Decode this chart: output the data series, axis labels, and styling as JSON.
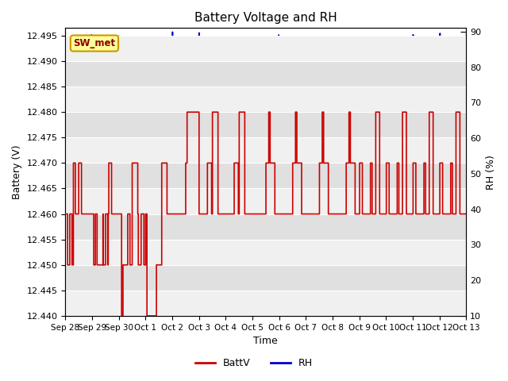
{
  "title": "Battery Voltage and RH",
  "xlabel": "Time",
  "ylabel_left": "Battery (V)",
  "ylabel_right": "RH (%)",
  "station_label": "SW_met",
  "ylim_left": [
    12.44,
    12.4965
  ],
  "ylim_right": [
    10,
    91
  ],
  "yticks_left": [
    12.44,
    12.445,
    12.45,
    12.455,
    12.46,
    12.465,
    12.47,
    12.475,
    12.48,
    12.485,
    12.49,
    12.495
  ],
  "yticks_right": [
    10,
    20,
    30,
    40,
    50,
    60,
    70,
    80,
    90
  ],
  "xtick_labels": [
    "Sep 28",
    "Sep 29",
    "Sep 30",
    "Oct 1",
    "Oct 2",
    "Oct 3",
    "Oct 4",
    "Oct 5",
    "Oct 6",
    "Oct 7",
    "Oct 8",
    "Oct 9",
    "Oct 10",
    "Oct 11",
    "Oct 12",
    "Oct 13"
  ],
  "batt_color": "#cc0000",
  "rh_color": "#0000cc",
  "plot_bg_light": "#f0f0f0",
  "plot_bg_dark": "#e0e0e0",
  "grid_color": "#ffffff",
  "station_box_color": "#ffff99",
  "station_box_edge": "#cc9900",
  "legend_batt_color": "#cc0000",
  "legend_rh_color": "#0000cc",
  "n_days": 15
}
